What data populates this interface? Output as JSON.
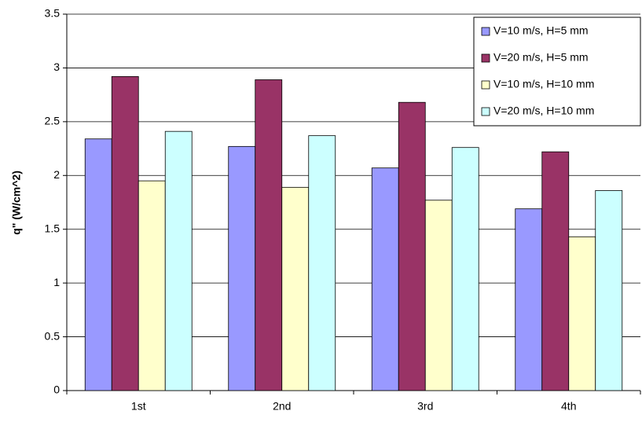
{
  "chart_data": {
    "type": "bar",
    "y_label": "q\" (W/cm^2)",
    "categories": [
      "1st",
      "2nd",
      "3rd",
      "4th"
    ],
    "series": [
      {
        "name": "V=10 m/s, H=5 mm",
        "color": "#9999ff",
        "values": [
          2.34,
          2.27,
          2.07,
          1.69
        ]
      },
      {
        "name": "V=20 m/s, H=5 mm",
        "color": "#993366",
        "values": [
          2.92,
          2.89,
          2.68,
          2.22
        ]
      },
      {
        "name": "V=10 m/s, H=10 mm",
        "color": "#ffffcc",
        "values": [
          1.95,
          1.89,
          1.77,
          1.43
        ]
      },
      {
        "name": "V=20 m/s, H=10 mm",
        "color": "#ccffff",
        "values": [
          2.41,
          2.37,
          2.26,
          1.86
        ]
      }
    ],
    "ylim": [
      0,
      3.5
    ],
    "yticks": [
      0,
      0.5,
      1,
      1.5,
      2,
      2.5,
      3,
      3.5
    ],
    "grid": true,
    "legend": "top-right"
  }
}
